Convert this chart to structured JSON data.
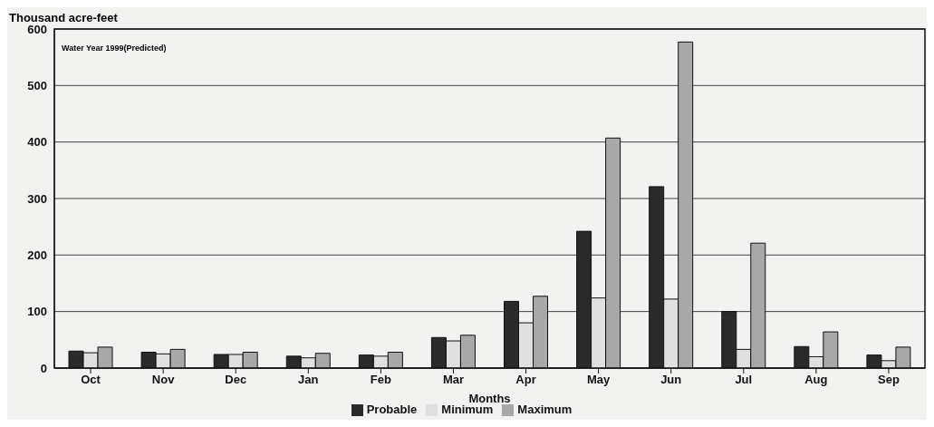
{
  "chart_data": {
    "type": "bar",
    "ylabel": "Thousand acre-feet",
    "xlabel": "Months",
    "annotations": [
      "Water Year 1999(Predicted)"
    ],
    "categories": [
      "Oct",
      "Nov",
      "Dec",
      "Jan",
      "Feb",
      "Mar",
      "Apr",
      "May",
      "Jun",
      "Jul",
      "Aug",
      "Sep"
    ],
    "series": [
      {
        "name": "Probable",
        "color": "#2a2a2a",
        "values": [
          30,
          28,
          24,
          21,
          23,
          54,
          118,
          242,
          321,
          100,
          38,
          23
        ]
      },
      {
        "name": "Minimum",
        "color": "#e0e0e0",
        "values": [
          27,
          25,
          24,
          18,
          21,
          48,
          80,
          124,
          122,
          33,
          20,
          13
        ]
      },
      {
        "name": "Maximum",
        "color": "#a8a8a8",
        "values": [
          37,
          33,
          28,
          26,
          28,
          58,
          127,
          407,
          577,
          221,
          64,
          37
        ]
      }
    ],
    "ylim": [
      0,
      600
    ],
    "yticks": [
      0,
      100,
      200,
      300,
      400,
      500,
      600
    ],
    "grid": "y",
    "legend": "bottom"
  }
}
